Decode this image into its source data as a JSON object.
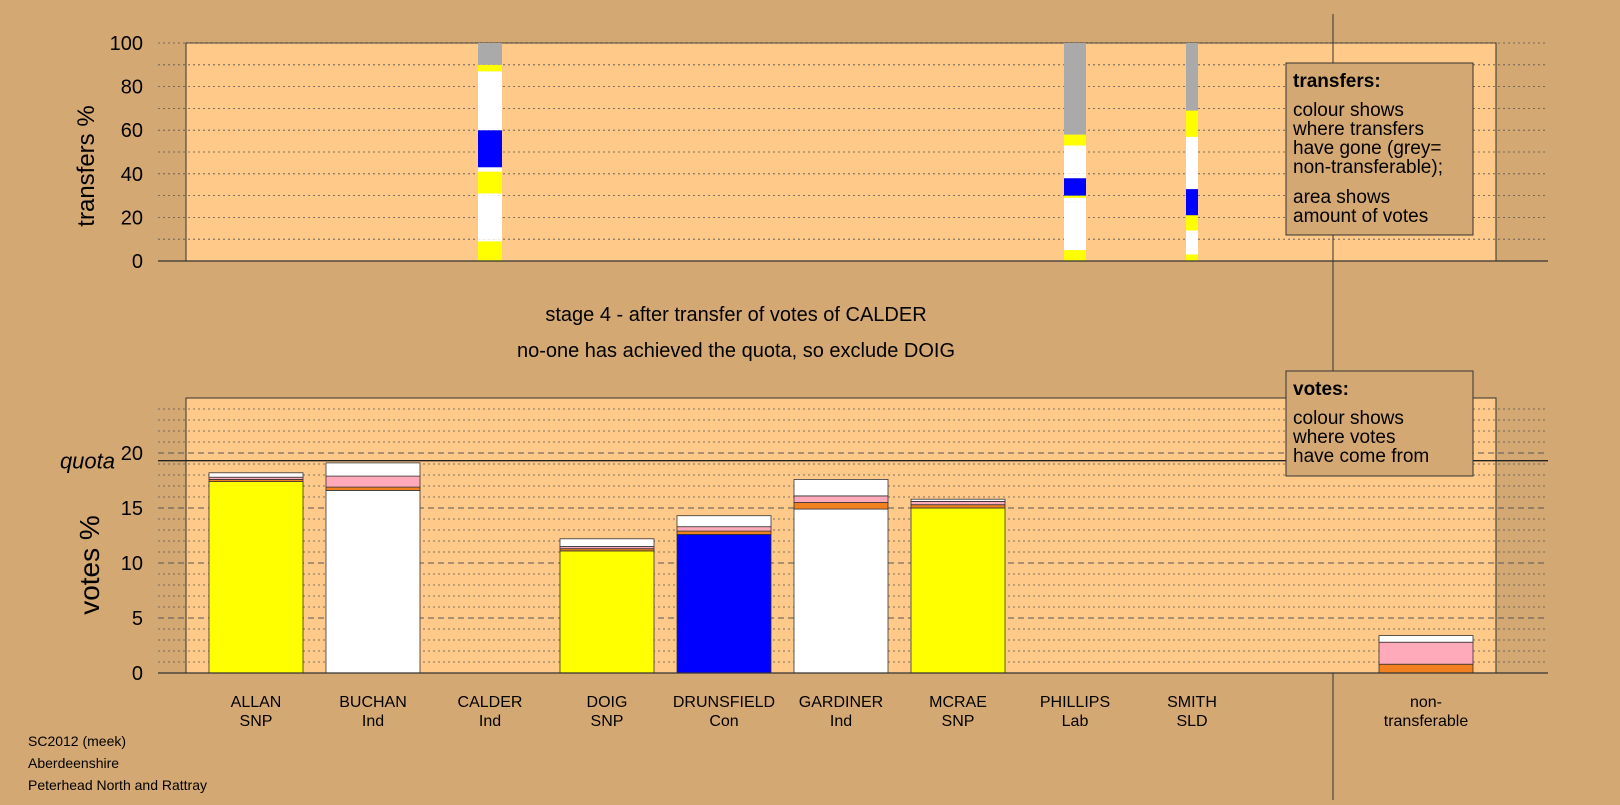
{
  "colors": {
    "background": "#d4a873",
    "plot_area": "#ffc98a",
    "Ind": "#ffffff",
    "SNP": "#ffff00",
    "Con": "#0000ff",
    "Lab": "#ff2020",
    "SLD": "#ffa000",
    "nontransferable": "#aaaaaa",
    "pink": "#ffaabb",
    "orange": "#f08020"
  },
  "top_chart": {
    "ylabel": "transfers %",
    "ticks": [
      "0",
      "20",
      "40",
      "60",
      "80",
      "100"
    ],
    "legend": {
      "title": "transfers:",
      "lines": [
        "colour shows",
        "where transfers",
        "have gone (grey=",
        "non-transferable);"
      ],
      "lines2": [
        "area shows",
        "amount of votes"
      ]
    }
  },
  "stage_text": {
    "line1": "stage 4 - after transfer of votes of CALDER",
    "line2": "no-one has achieved the quota, so exclude DOIG"
  },
  "bottom_chart": {
    "ylabel": "votes %",
    "quota_label": "quota",
    "ticks": [
      "0",
      "5",
      "10",
      "15",
      "20"
    ],
    "legend": {
      "title": "votes:",
      "lines": [
        "colour shows",
        "where votes",
        "have come from"
      ]
    }
  },
  "footer": {
    "line1": "SC2012 (meek)",
    "line2": "Aberdeenshire",
    "line3": "Peterhead North and Rattray"
  },
  "chart_data": [
    {
      "type": "bar",
      "title": "transfers",
      "ylabel": "transfers %",
      "ylim": [
        0,
        100
      ],
      "columns": [
        {
          "category": "CALDER",
          "segments": [
            [
              0,
              9,
              "SNP"
            ],
            [
              9,
              10,
              "Ind"
            ],
            [
              10,
              30,
              "Ind"
            ],
            [
              30,
              31,
              "Ind"
            ],
            [
              31,
              41,
              "SNP"
            ],
            [
              41,
              43,
              "Ind"
            ],
            [
              43,
              60,
              "Con"
            ],
            [
              60,
              61,
              "Ind"
            ],
            [
              61,
              87,
              "Ind"
            ],
            [
              87,
              90,
              "SNP"
            ],
            [
              90,
              100,
              "nontransferable"
            ]
          ]
        },
        {
          "category": "PHILLIPS",
          "segments": [
            [
              0,
              5,
              "SNP"
            ],
            [
              5,
              27,
              "Ind"
            ],
            [
              27,
              29,
              "Ind"
            ],
            [
              29,
              30,
              "SNP"
            ],
            [
              30,
              38,
              "Con"
            ],
            [
              38,
              40,
              "Ind"
            ],
            [
              40,
              51,
              "Ind"
            ],
            [
              51,
              53,
              "Ind"
            ],
            [
              53,
              58,
              "SNP"
            ],
            [
              58,
              100,
              "nontransferable"
            ]
          ]
        },
        {
          "category": "SMITH",
          "segments": [
            [
              0,
              3,
              "SNP"
            ],
            [
              3,
              13,
              "Ind"
            ],
            [
              13,
              14,
              "Ind"
            ],
            [
              14,
              21,
              "SNP"
            ],
            [
              21,
              33,
              "Con"
            ],
            [
              33,
              57,
              "Ind"
            ],
            [
              57,
              69,
              "SNP"
            ],
            [
              69,
              100,
              "nontransferable"
            ]
          ]
        }
      ]
    },
    {
      "type": "bar",
      "title": "votes",
      "ylabel": "votes %",
      "ylim": [
        0,
        25
      ],
      "quota": 19.3,
      "categories": [
        "ALLAN",
        "BUCHAN",
        "CALDER",
        "DOIG",
        "DRUNSFIELD",
        "GARDINER",
        "MCRAE",
        "PHILLIPS",
        "SMITH",
        "non-transferable"
      ],
      "parties": [
        "SNP",
        "Ind",
        "Ind",
        "SNP",
        "Con",
        "Ind",
        "SNP",
        "Lab",
        "SLD",
        "transferable"
      ],
      "bars": [
        {
          "category": "ALLAN",
          "segments": [
            [
              17.4,
              "SNP"
            ],
            [
              0.2,
              "orange"
            ],
            [
              0.2,
              "pink"
            ],
            [
              0.4,
              "Ind"
            ]
          ]
        },
        {
          "category": "BUCHAN",
          "segments": [
            [
              16.6,
              "Ind"
            ],
            [
              0.3,
              "orange"
            ],
            [
              1.0,
              "pink"
            ],
            [
              1.2,
              "Ind"
            ]
          ]
        },
        {
          "category": "CALDER",
          "segments": []
        },
        {
          "category": "DOIG",
          "segments": [
            [
              11.1,
              "SNP"
            ],
            [
              0.2,
              "orange"
            ],
            [
              0.2,
              "pink"
            ],
            [
              0.7,
              "Ind"
            ]
          ]
        },
        {
          "category": "DRUNSFIELD",
          "segments": [
            [
              12.6,
              "Con"
            ],
            [
              0.3,
              "orange"
            ],
            [
              0.4,
              "pink"
            ],
            [
              1.0,
              "Ind"
            ]
          ]
        },
        {
          "category": "GARDINER",
          "segments": [
            [
              14.9,
              "Ind"
            ],
            [
              0.6,
              "orange"
            ],
            [
              0.6,
              "pink"
            ],
            [
              1.5,
              "Ind"
            ]
          ]
        },
        {
          "category": "MCRAE",
          "segments": [
            [
              15.0,
              "SNP"
            ],
            [
              0.3,
              "orange"
            ],
            [
              0.3,
              "pink"
            ],
            [
              0.2,
              "Ind"
            ]
          ]
        },
        {
          "category": "PHILLIPS",
          "segments": []
        },
        {
          "category": "SMITH",
          "segments": []
        },
        {
          "category": "non-transferable",
          "segments": [
            [
              0.8,
              "orange"
            ],
            [
              2.0,
              "pink"
            ],
            [
              0.6,
              "Ind"
            ]
          ]
        }
      ]
    }
  ]
}
